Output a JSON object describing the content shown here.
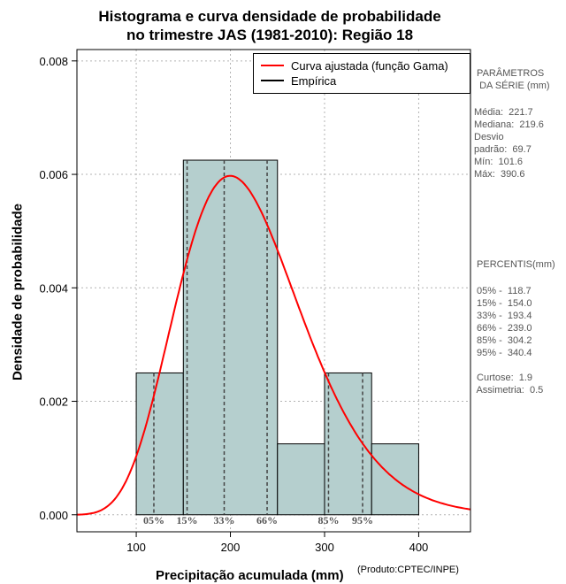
{
  "chart_data": {
    "type": "histogram",
    "title": "Histograma e curva densidade de probabilidade",
    "subtitle": "no trimestre JAS (1981-2010): Região 18",
    "xlabel": "Precipitação acumulada (mm)",
    "ylabel": "Densidade de probabilidade",
    "credit": "(Produto:CPTEC/INPE)",
    "xlim": [
      37,
      455
    ],
    "ylim": [
      -0.0003,
      0.0082
    ],
    "x_ticks": [
      100,
      200,
      300,
      400
    ],
    "y_ticks": [
      0.0,
      0.002,
      0.004,
      0.006,
      0.008
    ],
    "y_tick_labels": [
      "0.000",
      "0.002",
      "0.004",
      "0.006",
      "0.008"
    ],
    "grid": true,
    "bins": [
      {
        "x0": 100,
        "x1": 150,
        "density": 0.0025
      },
      {
        "x0": 150,
        "x1": 250,
        "density": 0.00625
      },
      {
        "x0": 250,
        "x1": 300,
        "density": 0.00125
      },
      {
        "x0": 300,
        "x1": 350,
        "density": 0.0025
      },
      {
        "x0": 350,
        "x1": 400,
        "density": 0.00125
      }
    ],
    "gamma_fit": {
      "mean": 221.7,
      "sd": 69.7
    },
    "legend": [
      {
        "label": "Curva ajustada (função Gama)",
        "color": "#ff0000"
      },
      {
        "label": "Empírica",
        "color": "#000000"
      }
    ],
    "percentile_marks": [
      {
        "label": "05%",
        "x": 118.7
      },
      {
        "label": "15%",
        "x": 154.0
      },
      {
        "label": "33%",
        "x": 193.4
      },
      {
        "label": "66%",
        "x": 239.0
      },
      {
        "label": "85%",
        "x": 304.2
      },
      {
        "label": "95%",
        "x": 340.4
      }
    ],
    "bar_color": "#b5cfce",
    "curve_color": "#ff0000"
  },
  "side_panel": {
    "params_title": " PARÂMETROS\n  DA SÉRIE (mm)",
    "params": "Média:  221.7\nMediana:  219.6\nDesvio\npadrão:  69.7\nMín:  101.6\nMáx:  390.6",
    "percentis_title": " PERCENTIS(mm)",
    "percentis": " 05% -  118.7\n 15% -  154.0\n 33% -  193.4\n 66% -  239.0\n 85% -  304.2\n 95% -  340.4\n\n Curtose:  1.9\n Assimetria:  0.5"
  }
}
